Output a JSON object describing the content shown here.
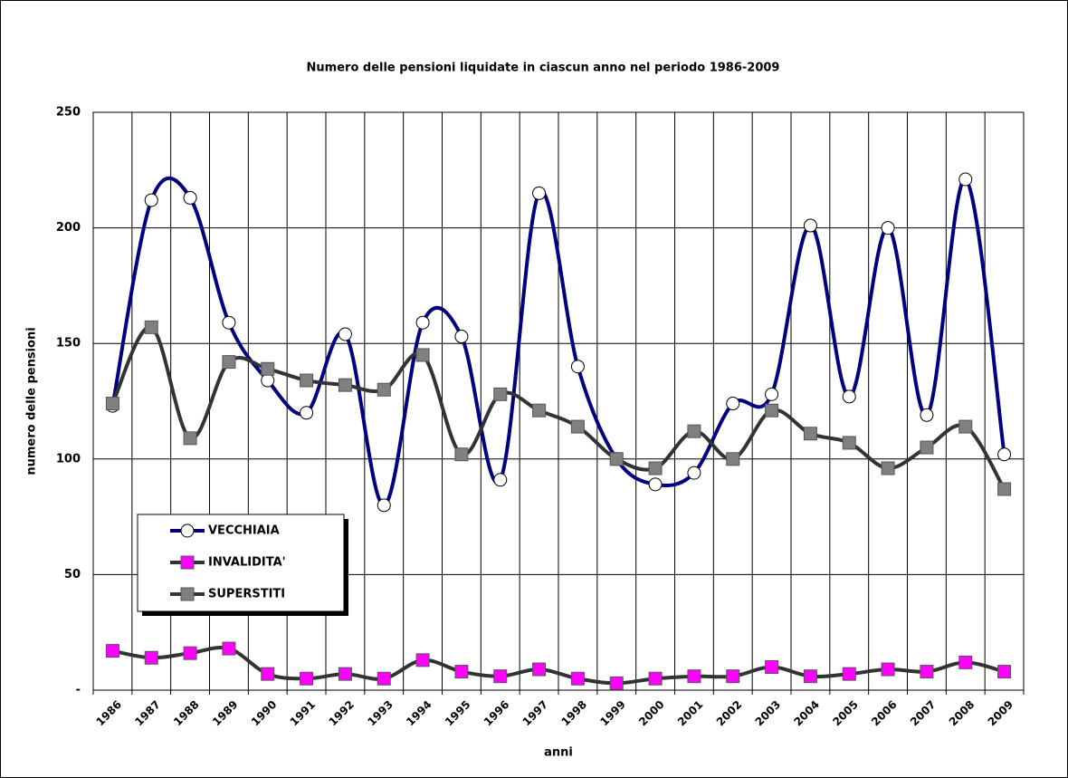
{
  "chart_data": {
    "type": "line",
    "title": "Numero delle pensioni liquidate in ciascun anno nel periodo 1986-2009",
    "x_label": "anni",
    "y_label": "numero delle pensioni",
    "categories": [
      "1986",
      "1987",
      "1988",
      "1989",
      "1990",
      "1991",
      "1992",
      "1993",
      "1994",
      "1995",
      "1996",
      "1997",
      "1998",
      "1999",
      "2000",
      "2001",
      "2002",
      "2003",
      "2004",
      "2005",
      "2006",
      "2007",
      "2008",
      "2009"
    ],
    "series": [
      {
        "name": "VECCHIAIA",
        "color": "#000080",
        "marker": "circle",
        "marker_color": "#ffffff",
        "values": [
          123,
          212,
          213,
          159,
          134,
          120,
          154,
          80,
          159,
          153,
          91,
          215,
          140,
          100,
          89,
          94,
          124,
          128,
          201,
          127,
          200,
          119,
          221,
          102
        ]
      },
      {
        "name": "INVALIDITA'",
        "color": "#333333",
        "marker": "square",
        "marker_color": "#ff00ff",
        "values": [
          17,
          14,
          16,
          18,
          7,
          5,
          7,
          5,
          13,
          8,
          6,
          9,
          5,
          3,
          5,
          6,
          6,
          10,
          6,
          7,
          9,
          8,
          12,
          8
        ]
      },
      {
        "name": "SUPERSTITI",
        "color": "#333333",
        "marker": "square",
        "marker_color": "#808080",
        "values": [
          124,
          157,
          109,
          142,
          139,
          134,
          132,
          130,
          145,
          102,
          128,
          121,
          114,
          100,
          96,
          112,
          100,
          121,
          111,
          107,
          96,
          105,
          114,
          87
        ]
      }
    ],
    "ylim": [
      0,
      250
    ],
    "yticks": [
      {
        "value": 0,
        "label": "-"
      },
      50,
      100,
      150,
      200,
      250
    ],
    "grid": true
  }
}
